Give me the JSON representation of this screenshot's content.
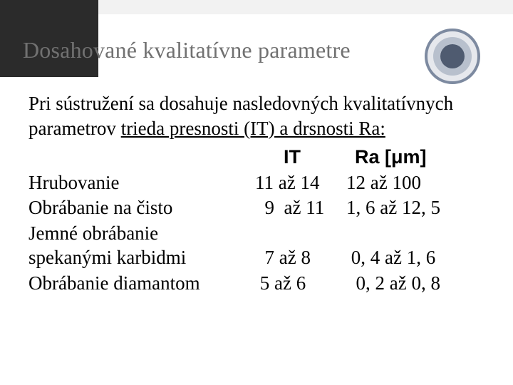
{
  "title": "Dosahované kvalitatívne parametre",
  "intro_plain": "Pri sústružení sa dosahuje nasledovných kvalitatívnych parametrov ",
  "intro_underlined": "trieda presnosti (IT) a drsnosti Ra:",
  "headers": {
    "it": "IT",
    "ra": "Ra [μm]"
  },
  "rows": [
    {
      "label": "Hrubovanie",
      "it": "11 až 14",
      "ra": "12 až 100"
    },
    {
      "label": "Obrábanie na čisto",
      "it": "  9  až 11",
      "ra": "1, 6 až 12, 5"
    },
    {
      "label": "Jemné obrábanie spekanými karbidmi",
      "it": "  7 až 8",
      "ra": " 0, 4 až 1, 6"
    },
    {
      "label": "Obrábanie diamantom",
      "it": " 5 až 6",
      "ra": "  0, 2 až 0, 8"
    }
  ],
  "logo_name": "university-seal"
}
